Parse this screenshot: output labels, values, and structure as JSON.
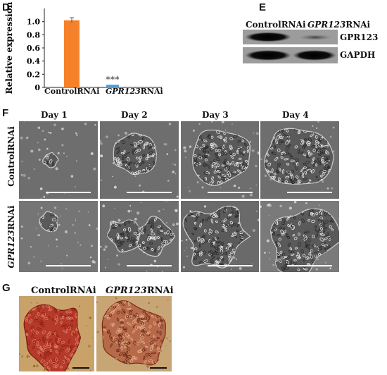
{
  "panel_d": {
    "letter": "D",
    "chart_data": {
      "type": "bar",
      "categories": [
        "ControlRNAi",
        "GPR123RNAi"
      ],
      "category_parts": [
        {
          "italic": "",
          "plain": "ControlRNAi"
        },
        {
          "italic": "GPR123",
          "plain": "RNAi"
        }
      ],
      "values": [
        1.02,
        0.04
      ],
      "errors": [
        0.04,
        0.01
      ],
      "colors": [
        "#f5822a",
        "#4f9bd1"
      ],
      "ylabel": "Relative expression",
      "yticks": [
        "0",
        "0.2",
        "0.4",
        "0.6",
        "0.8",
        "1.0"
      ],
      "ytick_values": [
        0,
        0.2,
        0.4,
        0.6,
        0.8,
        1.0
      ],
      "ylim": [
        0,
        1.2
      ],
      "annotation": "***"
    }
  },
  "panel_e": {
    "letter": "E",
    "lanes": [
      {
        "italic": "",
        "plain": "ControlRNAi"
      },
      {
        "italic": "GPR123",
        "plain": "RNAi"
      }
    ],
    "bands": [
      "GPR123",
      "GAPDH"
    ]
  },
  "panel_f": {
    "letter": "F",
    "columns": [
      "Day 1",
      "Day 2",
      "Day 3",
      "Day 4"
    ],
    "rows": [
      {
        "italic": "",
        "plain": "ControlRNAi"
      },
      {
        "italic": "GPR123",
        "plain": "RNAi"
      }
    ]
  },
  "panel_g": {
    "letter": "G",
    "columns": [
      {
        "italic": "",
        "plain": "ControlRNAi"
      },
      {
        "italic": "GPR123",
        "plain": "RNAi"
      }
    ]
  }
}
